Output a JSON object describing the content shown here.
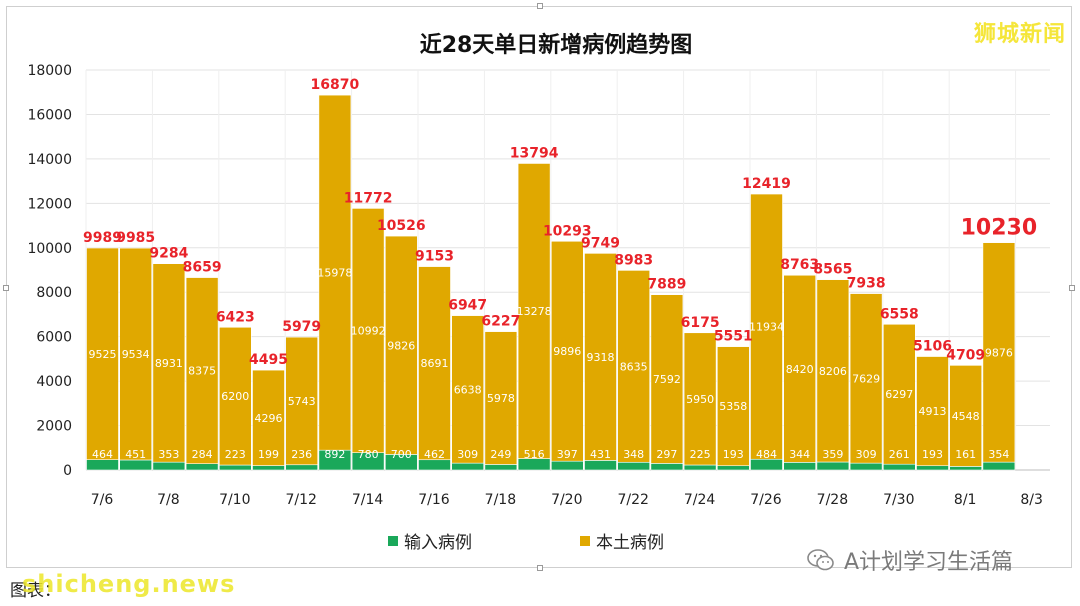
{
  "brand": "狮城新闻",
  "wechat_account": "A计划学习生活篇",
  "source_label": "图表：",
  "watermark": "shicheng.news",
  "colors": {
    "imported": "#1aa85a",
    "local": "#e0a800",
    "title": "#111111",
    "total_label": "#e8232a",
    "inner_label": "#ffffff",
    "brand": "#f5e63a"
  },
  "chart_data": {
    "type": "bar",
    "stacked": true,
    "title": "近28天单日新增病例趋势图",
    "categories": [
      "7/6",
      "7/7",
      "7/8",
      "7/9",
      "7/10",
      "7/11",
      "7/12",
      "7/13",
      "7/14",
      "7/15",
      "7/16",
      "7/17",
      "7/18",
      "7/19",
      "7/20",
      "7/21",
      "7/22",
      "7/23",
      "7/24",
      "7/25",
      "7/26",
      "7/27",
      "7/28",
      "7/29",
      "7/30",
      "7/31",
      "8/1",
      "8/2"
    ],
    "x_tick_labels": [
      "7/6",
      "7/8",
      "7/10",
      "7/12",
      "7/14",
      "7/16",
      "7/18",
      "7/20",
      "7/22",
      "7/24",
      "7/26",
      "7/28",
      "7/30",
      "8/1",
      "8/3"
    ],
    "series": [
      {
        "name": "输入病例",
        "color": "#1aa85a",
        "values": [
          464,
          451,
          353,
          284,
          223,
          199,
          236,
          892,
          780,
          700,
          462,
          309,
          249,
          516,
          397,
          431,
          348,
          297,
          225,
          193,
          484,
          344,
          359,
          309,
          261,
          193,
          161,
          354
        ]
      },
      {
        "name": "本土病例",
        "color": "#e0a800",
        "values": [
          9525,
          9534,
          8931,
          8375,
          6200,
          4296,
          5743,
          15978,
          10992,
          9826,
          8691,
          6638,
          5978,
          13278,
          9896,
          9318,
          8635,
          7592,
          5950,
          5358,
          11934,
          8420,
          8206,
          7629,
          6297,
          4913,
          4548,
          9876
        ]
      }
    ],
    "totals": [
      9989,
      9985,
      9284,
      8659,
      6423,
      4495,
      5979,
      16870,
      11772,
      10526,
      9153,
      6947,
      6227,
      13794,
      10293,
      9749,
      8983,
      7889,
      6175,
      5551,
      12419,
      8763,
      8565,
      7938,
      6558,
      5106,
      4709,
      10230
    ],
    "highlight_last_total": true,
    "ylim": [
      0,
      18000
    ],
    "yticks": [
      0,
      2000,
      4000,
      6000,
      8000,
      10000,
      12000,
      14000,
      16000,
      18000
    ],
    "grid": true,
    "legend_position": "bottom"
  }
}
